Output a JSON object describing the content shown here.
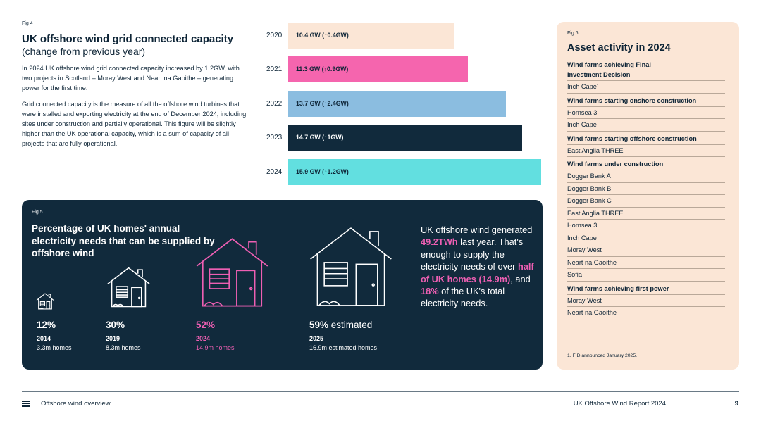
{
  "fig4": {
    "tag": "Fig 4",
    "title": "UK offshore wind grid connected capacity",
    "subtitle": "(change from previous year)",
    "para1": "In 2024 UK offshore wind grid connected capacity increased by 1.2GW, with two projects in Scotland – Moray West and Neart na Gaoithe – generating power for the first time.",
    "para2": "Grid connected capacity is the measure of all the offshore wind turbines that were installed and exporting electricity at the end of December 2024, including sites under construction and partially operational. This figure will be slightly higher than the UK operational capacity, which is a sum of capacity of all projects that are fully operational."
  },
  "chart_data": {
    "type": "bar",
    "orientation": "horizontal",
    "categories": [
      "2020",
      "2021",
      "2022",
      "2023",
      "2024"
    ],
    "values": [
      10.4,
      11.3,
      13.7,
      14.7,
      15.9
    ],
    "unit": "GW",
    "labels": [
      "10.4 GW (↑0.4GW)",
      "11.3 GW (↑0.9GW)",
      "13.7 GW (↑2.4GW)",
      "14.7 GW (↑1GW)",
      "15.9 GW (↑1.2GW)"
    ],
    "colors": [
      "#fbe6d6",
      "#f565ae",
      "#8bbde0",
      "#112a3c",
      "#62dfe0"
    ],
    "label_colors": [
      "#0d2436",
      "#0d2436",
      "#0d2436",
      "#ffffff",
      "#0d2436"
    ]
  },
  "fig5": {
    "tag": "Fig 5",
    "title": "Percentage of UK homes' annual electricity needs that can be supplied by offshore wind",
    "stats": [
      {
        "pct": "12%",
        "suffix": "",
        "year": "2014",
        "homes": "3.3m homes"
      },
      {
        "pct": "30%",
        "suffix": "",
        "year": "2019",
        "homes": "8.3m homes"
      },
      {
        "pct": "52%",
        "suffix": "",
        "year": "2024",
        "homes": "14.9m homes"
      },
      {
        "pct": "59%",
        "suffix": " estimated",
        "year": "2025",
        "homes": "16.9m estimated homes"
      }
    ],
    "para": {
      "t1": "UK offshore wind generated ",
      "h1": "49.2TWh",
      "t2": " last year. That's enough to supply the electricity needs of over ",
      "h2": "half of UK homes (14.9m)",
      "t3": ", and ",
      "h3": "18%",
      "t4": " of the UK's total electricity needs."
    },
    "highlight_color": "#ee5fb3"
  },
  "fig6": {
    "tag": "Fig 6",
    "title": "Asset activity in 2024",
    "groups": [
      {
        "heading": "Wind farms achieving Final Investment Decision",
        "items": [
          "Inch Cape¹"
        ]
      },
      {
        "heading": "Wind farms starting onshore construction",
        "items": [
          "Hornsea 3",
          "Inch Cape"
        ]
      },
      {
        "heading": "Wind farms starting offshore construction",
        "items": [
          "East Anglia THREE"
        ]
      },
      {
        "heading": "Wind farms under construction",
        "items": [
          "Dogger Bank A",
          "Dogger Bank B",
          "Dogger Bank C",
          "East Anglia THREE",
          "Hornsea 3",
          "Inch Cape",
          "Moray West",
          "Neart na Gaoithe",
          "Sofia"
        ]
      },
      {
        "heading": "Wind farms achieving first power",
        "items": [
          "Moray West",
          "Neart na Gaoithe"
        ]
      }
    ],
    "footnote": "1. FID announced January 2025."
  },
  "footer": {
    "menu_icon": "menu-icon",
    "section": "Offshore wind overview",
    "report": "UK Offshore Wind Report 2024",
    "page": "9"
  }
}
